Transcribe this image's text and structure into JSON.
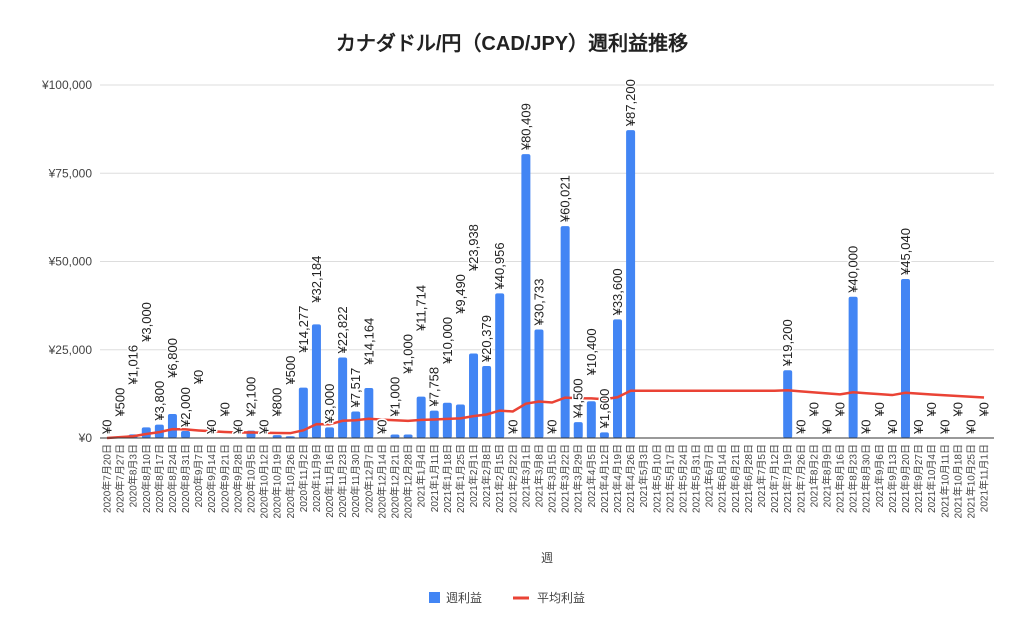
{
  "chart_data": {
    "type": "bar",
    "title": "カナダドル/円（CAD/JPY）週利益推移",
    "xlabel": "週",
    "ylabel": "",
    "ylim": [
      0,
      100000
    ],
    "yticks": [
      "¥0",
      "¥25,000",
      "¥50,000",
      "¥75,000",
      "¥100,000"
    ],
    "ytick_values": [
      0,
      25000,
      50000,
      75000,
      100000
    ],
    "grid": true,
    "legend_position": "bottom",
    "colors": {
      "bar": "#4285f4",
      "line": "#ea4335"
    },
    "categories": [
      "2020年7月20日",
      "2020年7月27日",
      "2020年8月3日",
      "2020年8月10日",
      "2020年8月17日",
      "2020年8月24日",
      "2020年8月31日",
      "2020年9月7日",
      "2020年9月14日",
      "2020年9月21日",
      "2020年9月28日",
      "2020年10月5日",
      "2020年10月12日",
      "2020年10月19日",
      "2020年10月26日",
      "2020年11月2日",
      "2020年11月9日",
      "2020年11月16日",
      "2020年11月23日",
      "2020年11月30日",
      "2020年12月7日",
      "2020年12月14日",
      "2020年12月21日",
      "2020年12月28日",
      "2021年1月4日",
      "2021年1月11日",
      "2021年1月18日",
      "2021年1月25日",
      "2021年2月1日",
      "2021年2月8日",
      "2021年2月15日",
      "2021年2月22日",
      "2021年3月1日",
      "2021年3月8日",
      "2021年3月15日",
      "2021年3月22日",
      "2021年3月29日",
      "2021年4月5日",
      "2021年4月12日",
      "2021年4月19日",
      "2021年4月26日",
      "2021年5月3日",
      "2021年5月10日",
      "2021年5月17日",
      "2021年5月24日",
      "2021年5月31日",
      "2021年6月7日",
      "2021年6月14日",
      "2021年6月21日",
      "2021年6月28日",
      "2021年7月5日",
      "2021年7月12日",
      "2021年7月19日",
      "2021年7月26日",
      "2021年8月2日",
      "2021年8月9日",
      "2021年8月16日",
      "2021年8月23日",
      "2021年8月30日",
      "2021年9月6日",
      "2021年9月13日",
      "2021年9月20日",
      "2021年9月27日",
      "2021年10月4日",
      "2021年10月11日",
      "2021年10月18日",
      "2021年10月25日",
      "2021年11月1日"
    ],
    "series": [
      {
        "name": "週利益",
        "type": "bar",
        "values": [
          0,
          500,
          1016,
          3000,
          3800,
          6800,
          2000,
          0,
          0,
          0,
          0,
          2100,
          0,
          800,
          500,
          14277,
          32184,
          3000,
          22822,
          7517,
          14164,
          0,
          1000,
          1000,
          11714,
          7758,
          10000,
          9490,
          23938,
          20379,
          40956,
          0,
          80409,
          30733,
          0,
          60021,
          4500,
          10400,
          1600,
          33600,
          87200,
          null,
          null,
          null,
          null,
          null,
          null,
          null,
          null,
          null,
          null,
          null,
          19200,
          0,
          0,
          0,
          0,
          40000,
          0,
          0,
          0,
          45040,
          0,
          0,
          0,
          0,
          0,
          0
        ]
      },
      {
        "name": "平均利益",
        "type": "line",
        "values": [
          0,
          250,
          505,
          1129,
          1663,
          2519,
          2445,
          2140,
          1902,
          1712,
          1556,
          1601,
          1478,
          1430,
          1368,
          2175,
          3940,
          3888,
          4884,
          5016,
          5451,
          5204,
          5021,
          4853,
          5128,
          5229,
          5406,
          5552,
          6186,
          6659,
          7765,
          7522,
          9731,
          10349,
          10053,
          11441,
          11254,
          11231,
          10984,
          11549,
          13395,
          13395,
          13395,
          13395,
          13395,
          13395,
          13395,
          13395,
          13395,
          13395,
          13395,
          13395,
          13533,
          13218,
          12917,
          12628,
          12353,
          12944,
          12674,
          12414,
          12167,
          12812,
          12566,
          12329,
          12100,
          11881,
          11669,
          11464
        ]
      }
    ]
  }
}
